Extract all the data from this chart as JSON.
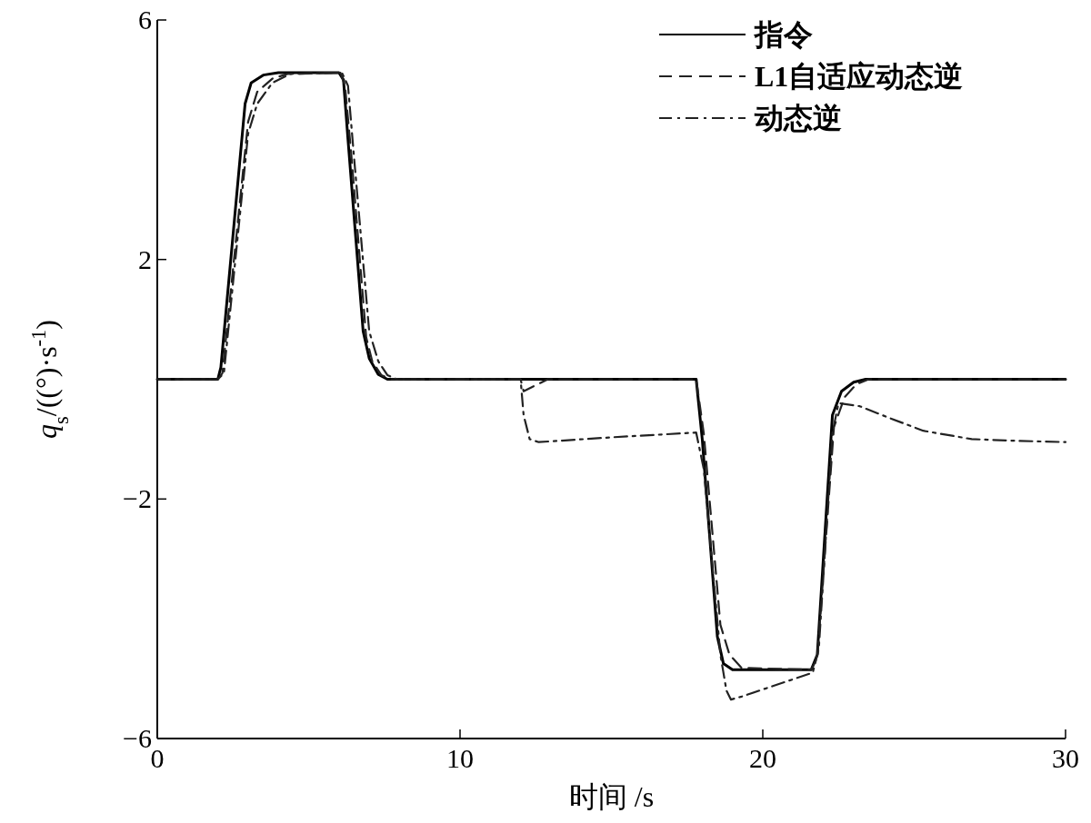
{
  "chart_data": {
    "type": "line",
    "xlabel": "时间 /s",
    "ylabel": "*q*$_{s}$/((°)·s$^{-1}$)",
    "xlim": [
      0,
      30
    ],
    "ylim": [
      -6,
      6
    ],
    "xticks": [
      0,
      10,
      20,
      30
    ],
    "yticks": [
      -6,
      -2,
      2,
      6
    ],
    "grid": false,
    "legend": "top right",
    "marker": "none",
    "series": [
      {
        "name": "指令",
        "color": "#000000",
        "line_style": "solid",
        "x": [
          0,
          2,
          2.1,
          2.9,
          3.1,
          3.5,
          4,
          6,
          6.15,
          6.3,
          6.8,
          7,
          7.3,
          7.6,
          17.8,
          18.0,
          18.5,
          18.7,
          19.0,
          21.6,
          21.8,
          22.3,
          22.6,
          23.0,
          23.4,
          30
        ],
        "values": [
          0,
          0,
          0.2,
          4.6,
          4.95,
          5.08,
          5.12,
          5.12,
          5.0,
          4.0,
          0.8,
          0.35,
          0.08,
          0,
          0,
          -1.0,
          -4.3,
          -4.75,
          -4.85,
          -4.85,
          -4.6,
          -0.6,
          -0.2,
          -0.05,
          0,
          0
        ]
      },
      {
        "name": "L1自适应动态逆",
        "color": "#222222",
        "line_style": "dashed",
        "x": [
          0,
          2,
          2.15,
          3.0,
          3.3,
          3.8,
          4.3,
          6.05,
          6.2,
          6.4,
          6.9,
          7.1,
          7.4,
          7.7,
          12.0,
          12.1,
          12.5,
          12.9,
          17.8,
          18.05,
          18.6,
          18.9,
          19.3,
          21.6,
          21.8,
          22.35,
          22.7,
          23.1,
          23.5,
          30
        ],
        "values": [
          0,
          0,
          0.1,
          4.3,
          4.8,
          5.02,
          5.1,
          5.12,
          4.9,
          3.8,
          0.7,
          0.3,
          0.07,
          0,
          0,
          -0.2,
          -0.1,
          0,
          0,
          -0.9,
          -4.1,
          -4.6,
          -4.82,
          -4.85,
          -4.65,
          -0.8,
          -0.3,
          -0.08,
          0,
          0
        ]
      },
      {
        "name": "动态逆",
        "color": "#222222",
        "line_style": "dashdot",
        "x": [
          0,
          2,
          2.2,
          3.0,
          3.3,
          3.8,
          4.4,
          6.1,
          6.3,
          6.5,
          7.0,
          7.3,
          7.6,
          7.9,
          12.0,
          12.1,
          12.3,
          12.6,
          15,
          17.8,
          18.05,
          18.6,
          18.8,
          18.95,
          19.3,
          21.65,
          21.85,
          22.3,
          22.5,
          23.2,
          24.2,
          25.3,
          26.9,
          28.5,
          30
        ],
        "values": [
          0,
          0,
          0.1,
          4.1,
          4.6,
          4.95,
          5.1,
          5.12,
          4.9,
          3.7,
          0.8,
          0.3,
          0.07,
          0,
          0,
          -0.6,
          -1.0,
          -1.05,
          -0.97,
          -0.89,
          -1.5,
          -4.6,
          -5.2,
          -5.35,
          -5.3,
          -4.9,
          -4.5,
          -0.9,
          -0.4,
          -0.45,
          -0.65,
          -0.86,
          -1.0,
          -1.03,
          -1.05
        ]
      }
    ]
  }
}
